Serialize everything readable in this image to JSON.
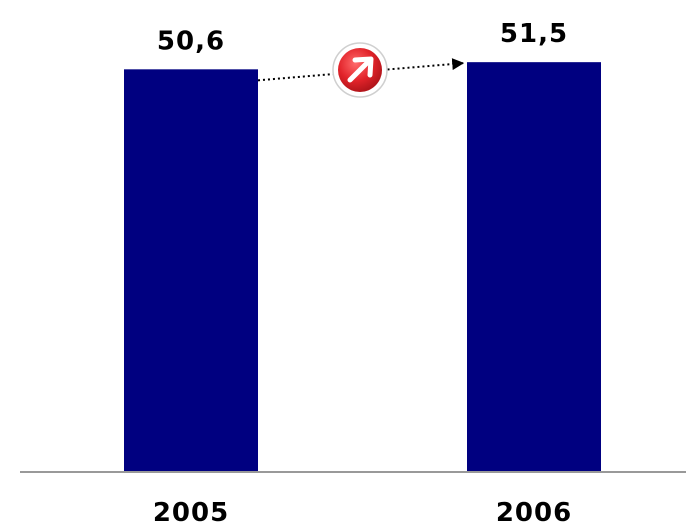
{
  "chart_data": {
    "type": "bar",
    "categories": [
      "2005",
      "2006"
    ],
    "values": [
      50.6,
      51.5
    ],
    "value_labels": [
      "50,6",
      "51,5"
    ],
    "title": "",
    "xlabel": "",
    "ylabel": "",
    "ylim": [
      0,
      52.4
    ],
    "grid": false,
    "legend": "none",
    "annotation": "upward arrow between bars",
    "colors": {
      "bar": "#000080",
      "axis": "#999999",
      "arrow_badge": "#e2232a",
      "dotted_line": "#000000"
    }
  },
  "icons": {
    "trend": "up-right-arrow-icon"
  }
}
